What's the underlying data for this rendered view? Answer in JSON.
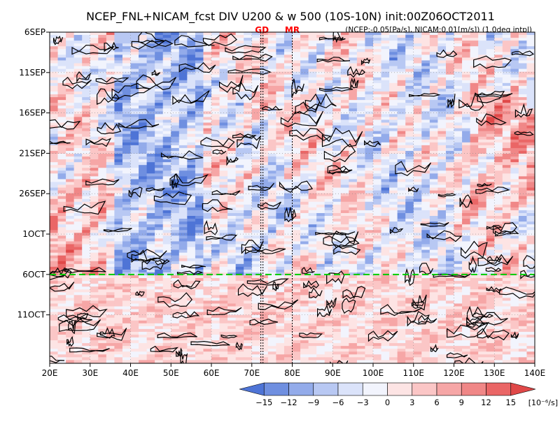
{
  "chart_data": {
    "type": "heatmap",
    "title": "NCEP_FNL+NICAM_fcst DIV U200 & w 500 (10S-10N) init:00Z06OCT2011",
    "subtitle": "(NCEP:-0.05[Pa/s], NICAM:0.01[m/s]) (1.0deg intpl)",
    "x_variable": "longitude",
    "y_variable": "time",
    "xlim": [
      20,
      140
    ],
    "x_ticks": [
      {
        "value": 20,
        "label": "20E"
      },
      {
        "value": 30,
        "label": "30E"
      },
      {
        "value": 40,
        "label": "40E"
      },
      {
        "value": 50,
        "label": "50E"
      },
      {
        "value": 60,
        "label": "60E"
      },
      {
        "value": 70,
        "label": "70E"
      },
      {
        "value": 80,
        "label": "80E"
      },
      {
        "value": 90,
        "label": "90E"
      },
      {
        "value": 100,
        "label": "100E"
      },
      {
        "value": 110,
        "label": "110E"
      },
      {
        "value": 120,
        "label": "120E"
      },
      {
        "value": 130,
        "label": "130E"
      },
      {
        "value": 140,
        "label": "140E"
      }
    ],
    "ylim_days": [
      0,
      41
    ],
    "y_ticks": [
      {
        "day": 0,
        "label": "6SEP"
      },
      {
        "day": 5,
        "label": "11SEP"
      },
      {
        "day": 10,
        "label": "16SEP"
      },
      {
        "day": 15,
        "label": "21SEP"
      },
      {
        "day": 20,
        "label": "26SEP"
      },
      {
        "day": 25,
        "label": "1OCT"
      },
      {
        "day": 30,
        "label": "6OCT"
      },
      {
        "day": 35,
        "label": "11OCT"
      }
    ],
    "forecast_start": {
      "day": 30,
      "label": "6OCT",
      "color": "#00cc00"
    },
    "reference_lines": [
      {
        "label": "GD",
        "lon": 72.5,
        "color": "#ff0000"
      },
      {
        "label": "MR",
        "lon": 80,
        "color": "#ff0000"
      }
    ],
    "colorbar": {
      "levels": [
        -15,
        -12,
        -9,
        -6,
        -3,
        0,
        3,
        6,
        9,
        12,
        15
      ],
      "tick_labels": [
        "-15",
        "-12",
        "-9",
        "-6",
        "-3",
        "0",
        "3",
        "6",
        "9",
        "12",
        "15"
      ],
      "unit": "[10⁻⁶/s]",
      "colors": [
        "#4e74d6",
        "#6f8fe0",
        "#93abea",
        "#b8c8f3",
        "#dbe3fa",
        "#f2f4fd",
        "#fde4e4",
        "#fbc6c6",
        "#f6a6a6",
        "#f08787",
        "#ea6666",
        "#e04848"
      ]
    }
  }
}
